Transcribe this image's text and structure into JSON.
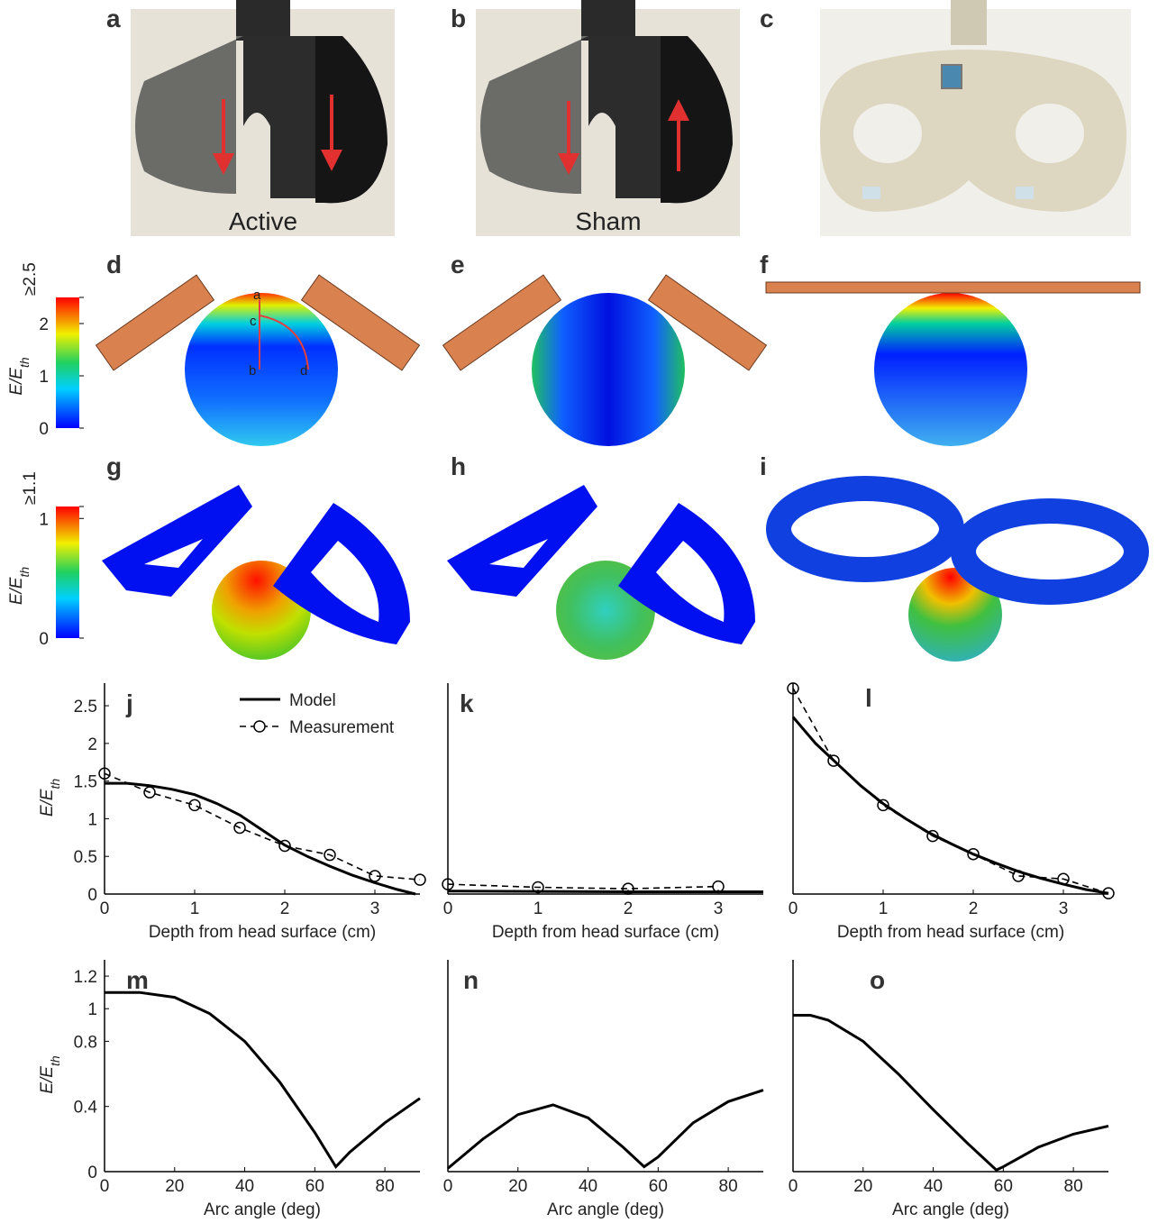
{
  "panels": [
    "a",
    "b",
    "c",
    "d",
    "e",
    "f",
    "g",
    "h",
    "i"
  ],
  "photo_labels": [
    "Active",
    "Sham"
  ],
  "d_markers": [
    "a",
    "b",
    "c",
    "d"
  ],
  "colorbars": [
    {
      "label": "E/E",
      "label_sub": "th",
      "lim": [
        0,
        2.5
      ],
      "ticks": [
        0,
        1,
        2,
        {
          "value": 2.5,
          "label": "≥2.5"
        }
      ]
    },
    {
      "label": "E/E",
      "label_sub": "th",
      "lim": [
        0,
        1.1
      ],
      "ticks": [
        0,
        1,
        {
          "value": 1.1,
          "label": "≥1.1"
        }
      ]
    }
  ],
  "chart_data": [
    {
      "type": "line",
      "panel": "j",
      "xlabel": "Depth from head surface (cm)",
      "ylabel": "E/E",
      "ylabel_sub": "th",
      "xlim": [
        0,
        3.5
      ],
      "ylim": [
        0,
        2.8
      ],
      "xticks": [
        0,
        1,
        2,
        3
      ],
      "yticks": [
        0,
        0.5,
        1,
        1.5,
        2,
        2.5
      ],
      "series": [
        {
          "name": "Model",
          "color": "#000000",
          "dash": "solid",
          "x": [
            0,
            0.25,
            0.5,
            0.75,
            1,
            1.25,
            1.5,
            1.75,
            2,
            2.25,
            2.5,
            2.75,
            3,
            3.25,
            3.45
          ],
          "values": [
            1.47,
            1.47,
            1.44,
            1.39,
            1.32,
            1.2,
            1.05,
            0.85,
            0.65,
            0.5,
            0.37,
            0.25,
            0.15,
            0.06,
            0
          ]
        },
        {
          "name": "Measurement",
          "color": "#000000",
          "dash": "dashed",
          "marker": "circle",
          "x": [
            0,
            0.5,
            1,
            1.5,
            2,
            2.5,
            3,
            3.5
          ],
          "values": [
            1.6,
            1.35,
            1.18,
            0.88,
            0.64,
            0.52,
            0.24,
            0.19
          ]
        }
      ]
    },
    {
      "type": "line",
      "panel": "k",
      "xlabel": "Depth from head surface (cm)",
      "xlim": [
        0,
        3.5
      ],
      "ylim": [
        0,
        2.8
      ],
      "xticks": [
        0,
        1,
        2,
        3
      ],
      "series": [
        {
          "color": "#000000",
          "dash": "solid",
          "x": [
            0,
            1,
            2,
            3,
            3.5
          ],
          "values": [
            0.04,
            0.035,
            0.03,
            0.03,
            0.03
          ]
        },
        {
          "color": "#000000",
          "dash": "dashed",
          "marker": "circle",
          "x": [
            0,
            1,
            2,
            3
          ],
          "values": [
            0.13,
            0.09,
            0.07,
            0.1
          ]
        }
      ]
    },
    {
      "type": "line",
      "panel": "l",
      "xlabel": "Depth from head surface (cm)",
      "xlim": [
        0,
        3.5
      ],
      "ylim": [
        0,
        2.8
      ],
      "xticks": [
        0,
        1,
        2,
        3
      ],
      "series": [
        {
          "color": "#000000",
          "dash": "solid",
          "x": [
            0,
            0.25,
            0.5,
            0.75,
            1,
            1.25,
            1.5,
            1.75,
            2,
            2.25,
            2.5,
            2.75,
            3,
            3.25,
            3.5
          ],
          "values": [
            2.35,
            2.0,
            1.72,
            1.44,
            1.2,
            1.0,
            0.82,
            0.67,
            0.53,
            0.41,
            0.3,
            0.21,
            0.13,
            0.06,
            0.01
          ]
        },
        {
          "color": "#000000",
          "dash": "dashed",
          "marker": "circle",
          "x": [
            0,
            0.45,
            1,
            1.55,
            2,
            2.5,
            3,
            3.5
          ],
          "values": [
            2.73,
            1.77,
            1.18,
            0.77,
            0.53,
            0.24,
            0.2,
            0.01
          ]
        }
      ]
    },
    {
      "type": "line",
      "panel": "m",
      "xlabel": "Arc angle (deg)",
      "ylabel": "E/E",
      "ylabel_sub": "th",
      "xlim": [
        0,
        90
      ],
      "ylim": [
        0,
        1.3
      ],
      "xticks": [
        0,
        20,
        40,
        60,
        80
      ],
      "yticks": [
        0,
        0.4,
        0.8,
        1,
        1.2
      ],
      "series": [
        {
          "color": "#000000",
          "dash": "solid",
          "x": [
            0,
            10,
            20,
            30,
            40,
            50,
            60,
            66,
            70,
            80,
            90
          ],
          "values": [
            1.1,
            1.1,
            1.07,
            0.97,
            0.8,
            0.55,
            0.24,
            0.03,
            0.12,
            0.3,
            0.45
          ]
        }
      ]
    },
    {
      "type": "line",
      "panel": "n",
      "xlabel": "Arc angle (deg)",
      "xlim": [
        0,
        90
      ],
      "ylim": [
        0,
        1.3
      ],
      "xticks": [
        0,
        20,
        40,
        60,
        80
      ],
      "series": [
        {
          "color": "#000000",
          "dash": "solid",
          "x": [
            0,
            10,
            20,
            30,
            40,
            50,
            56,
            60,
            70,
            80,
            90
          ],
          "values": [
            0.02,
            0.2,
            0.35,
            0.41,
            0.33,
            0.15,
            0.03,
            0.09,
            0.3,
            0.43,
            0.5
          ]
        }
      ]
    },
    {
      "type": "line",
      "panel": "o",
      "xlabel": "Arc angle (deg)",
      "xlim": [
        0,
        90
      ],
      "ylim": [
        0,
        1.3
      ],
      "xticks": [
        0,
        20,
        40,
        60,
        80
      ],
      "series": [
        {
          "color": "#000000",
          "dash": "solid",
          "x": [
            0,
            5,
            10,
            20,
            30,
            40,
            50,
            58,
            60,
            70,
            80,
            90
          ],
          "values": [
            0.96,
            0.96,
            0.93,
            0.8,
            0.6,
            0.38,
            0.17,
            0.01,
            0.03,
            0.15,
            0.23,
            0.28
          ]
        }
      ]
    }
  ]
}
